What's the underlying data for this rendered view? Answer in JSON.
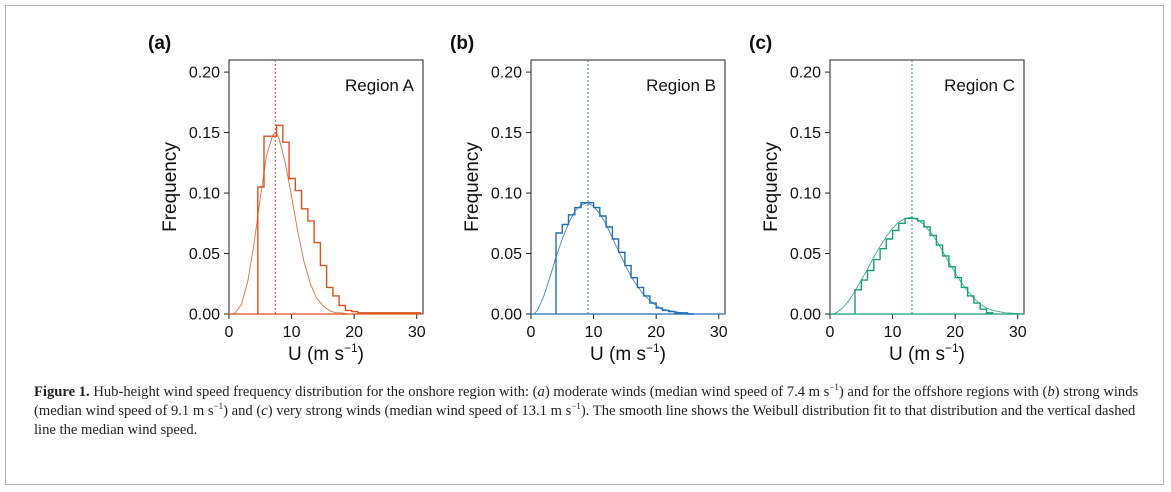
{
  "figure": {
    "caption": {
      "label": "Figure 1.",
      "p1": " Hub-height wind speed frequency distribution for the onshore region with: (",
      "a": "a",
      "p2": ") moderate winds (median wind speed of 7.4 m s",
      "sup1": "−1",
      "p3": ") and for the offshore regions with (",
      "b": "b",
      "p4": ") strong winds (median wind speed of 9.1 m s",
      "sup2": "−1",
      "p5": ") and (",
      "c": "c",
      "p6": ") very strong winds (median wind speed of 13.1 m s",
      "sup3": "−1",
      "p7": "). The smooth line shows the Weibull distribution fit to that distribution and the vertical dashed line the median wind speed."
    }
  },
  "chart_data": [
    {
      "type": "line",
      "panel_label": "(a)",
      "region_label": "Region A",
      "color": "#d9541e",
      "xlabel": "U (m s",
      "xlabel_sup": "−1",
      "xlabel_close": ")",
      "ylabel": "Frequency",
      "xlim": [
        0,
        31
      ],
      "ylim": [
        0,
        0.21
      ],
      "xticks": [
        "0",
        "10",
        "20",
        "30"
      ],
      "yticks": [
        "0.00",
        "0.05",
        "0.10",
        "0.15",
        "0.20"
      ],
      "median": 7.4,
      "histogram": {
        "bin_edges": [
          4.6,
          5.6,
          6.6,
          7.6,
          8.6,
          9.6,
          10.6,
          11.6,
          12.6,
          13.6,
          14.6,
          15.6,
          16.6,
          17.6,
          18.6,
          19.6,
          20.6,
          21.6,
          22.6,
          23.6,
          24.6,
          25.6,
          26.6,
          27.6,
          28.6,
          29.6,
          30.6
        ],
        "values": [
          0.105,
          0.147,
          0.147,
          0.156,
          0.142,
          0.112,
          0.102,
          0.087,
          0.077,
          0.059,
          0.04,
          0.022,
          0.015,
          0.007,
          0.003,
          0.002,
          0.001,
          0.001,
          0.001,
          0.001,
          0.001,
          0.001,
          0.001,
          0.001,
          0.001,
          0.001
        ]
      },
      "weibull_fit": {
        "x": [
          0.5,
          1,
          2,
          3,
          4,
          5,
          6,
          7,
          7.5,
          8,
          9,
          10,
          11,
          12,
          13,
          14,
          15,
          16,
          17,
          18,
          19,
          20,
          21,
          22,
          24,
          26,
          28,
          31
        ],
        "y": [
          0.0,
          0.001,
          0.008,
          0.027,
          0.058,
          0.096,
          0.131,
          0.148,
          0.15,
          0.145,
          0.125,
          0.097,
          0.068,
          0.043,
          0.025,
          0.013,
          0.007,
          0.003,
          0.001,
          0.001,
          0.0,
          0.0,
          0.0,
          0.0,
          0.0,
          0.0,
          0.0,
          0.0
        ]
      }
    },
    {
      "type": "line",
      "panel_label": "(b)",
      "region_label": "Region B",
      "color": "#1f6fb5",
      "xlabel": "U (m s",
      "xlabel_sup": "−1",
      "xlabel_close": ")",
      "ylabel": "Frequency",
      "xlim": [
        0,
        31
      ],
      "ylim": [
        0,
        0.21
      ],
      "xticks": [
        "0",
        "10",
        "20",
        "30"
      ],
      "yticks": [
        "0.00",
        "0.05",
        "0.10",
        "0.15",
        "0.20"
      ],
      "median": 9.1,
      "histogram": {
        "bin_edges": [
          4.0,
          5.0,
          6.0,
          7.0,
          8.0,
          9.0,
          10.0,
          11.0,
          12.0,
          13.0,
          14.0,
          15.0,
          16.0,
          17.0,
          18.0,
          19.0,
          20.0,
          21.0,
          22.0,
          23.0,
          24.0,
          25.0,
          26.0
        ],
        "values": [
          0.067,
          0.074,
          0.082,
          0.088,
          0.092,
          0.092,
          0.088,
          0.081,
          0.072,
          0.062,
          0.051,
          0.04,
          0.03,
          0.022,
          0.015,
          0.009,
          0.005,
          0.003,
          0.002,
          0.001,
          0.001,
          0.0
        ]
      },
      "weibull_fit": {
        "x": [
          0.5,
          1,
          2,
          3,
          4,
          5,
          6,
          7,
          8,
          9,
          10,
          11,
          12,
          13,
          14,
          15,
          16,
          17,
          18,
          19,
          20,
          21,
          22,
          23,
          24,
          26,
          28,
          31
        ],
        "y": [
          0.0,
          0.003,
          0.014,
          0.03,
          0.047,
          0.062,
          0.075,
          0.085,
          0.09,
          0.092,
          0.089,
          0.083,
          0.074,
          0.063,
          0.052,
          0.041,
          0.031,
          0.023,
          0.016,
          0.011,
          0.007,
          0.004,
          0.003,
          0.002,
          0.001,
          0.0,
          0.0,
          0.0
        ]
      }
    },
    {
      "type": "line",
      "panel_label": "(c)",
      "region_label": "Region C",
      "color": "#1a9e77",
      "xlabel": "U (m s",
      "xlabel_sup": "−1",
      "xlabel_close": ")",
      "ylabel": "Frequency",
      "xlim": [
        0,
        31
      ],
      "ylim": [
        0,
        0.21
      ],
      "xticks": [
        "0",
        "10",
        "20",
        "30"
      ],
      "yticks": [
        "0.00",
        "0.05",
        "0.10",
        "0.15",
        "0.20"
      ],
      "median": 13.1,
      "histogram": {
        "bin_edges": [
          4.0,
          5.0,
          6.0,
          7.0,
          8.0,
          9.0,
          10.0,
          11.0,
          12.0,
          13.0,
          14.0,
          15.0,
          16.0,
          17.0,
          18.0,
          19.0,
          20.0,
          21.0,
          22.0,
          23.0,
          24.0,
          25.0,
          26.0
        ],
        "values": [
          0.02,
          0.028,
          0.036,
          0.045,
          0.054,
          0.062,
          0.069,
          0.075,
          0.079,
          0.079,
          0.077,
          0.072,
          0.065,
          0.057,
          0.048,
          0.039,
          0.03,
          0.022,
          0.015,
          0.009,
          0.004,
          0.001
        ]
      },
      "weibull_fit": {
        "x": [
          0.5,
          1,
          2,
          3,
          4,
          5,
          6,
          7,
          8,
          9,
          10,
          11,
          12,
          13,
          14,
          15,
          16,
          17,
          18,
          19,
          20,
          21,
          22,
          23,
          24,
          25,
          26,
          28,
          31
        ],
        "y": [
          0.0,
          0.001,
          0.005,
          0.011,
          0.019,
          0.028,
          0.037,
          0.047,
          0.056,
          0.064,
          0.071,
          0.076,
          0.079,
          0.08,
          0.078,
          0.074,
          0.068,
          0.061,
          0.052,
          0.043,
          0.034,
          0.026,
          0.019,
          0.013,
          0.008,
          0.005,
          0.003,
          0.001,
          0.0
        ]
      }
    }
  ]
}
